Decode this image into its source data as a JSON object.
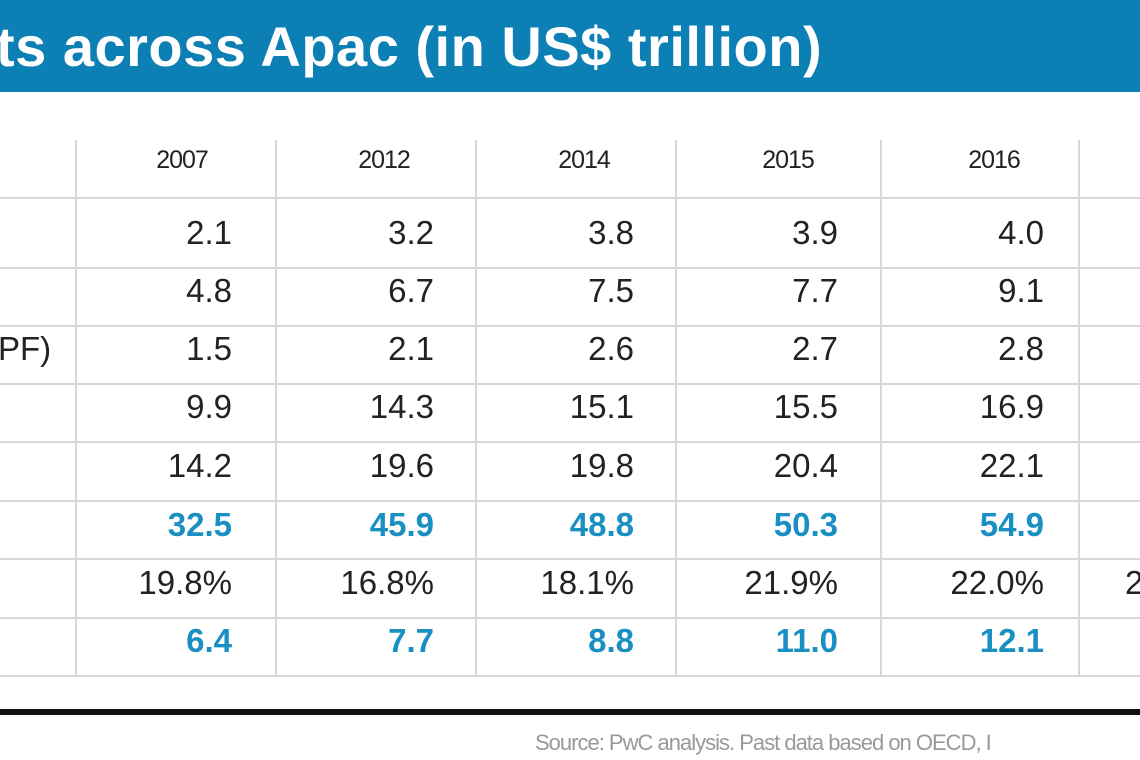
{
  "title": "ts across Apac (in US$ trillion)",
  "headers": [
    "2007",
    "2012",
    "2014",
    "2015",
    "2016"
  ],
  "row_label_fragments": {
    "row3": "PF)"
  },
  "rows": [
    {
      "values": [
        "2.1",
        "3.2",
        "3.8",
        "3.9",
        "4.0"
      ],
      "highlight": false
    },
    {
      "values": [
        "4.8",
        "6.7",
        "7.5",
        "7.7",
        "9.1"
      ],
      "highlight": false
    },
    {
      "values": [
        "1.5",
        "2.1",
        "2.6",
        "2.7",
        "2.8"
      ],
      "highlight": false
    },
    {
      "values": [
        "9.9",
        "14.3",
        "15.1",
        "15.5",
        "16.9"
      ],
      "highlight": false
    },
    {
      "values": [
        "14.2",
        "19.6",
        "19.8",
        "20.4",
        "22.1"
      ],
      "highlight": false
    },
    {
      "values": [
        "32.5",
        "45.9",
        "48.8",
        "50.3",
        "54.9"
      ],
      "highlight": true
    },
    {
      "values": [
        "19.8%",
        "16.8%",
        "18.1%",
        "21.9%",
        "22.0%"
      ],
      "highlight": false,
      "cutoff": "2"
    },
    {
      "values": [
        "6.4",
        "7.7",
        "8.8",
        "11.0",
        "12.1"
      ],
      "highlight": true
    }
  ],
  "source": "Source: PwC analysis. Past data based on OECD, I",
  "colors": {
    "title_bg": "#0c80b4",
    "highlight": "#1a8fc2"
  }
}
